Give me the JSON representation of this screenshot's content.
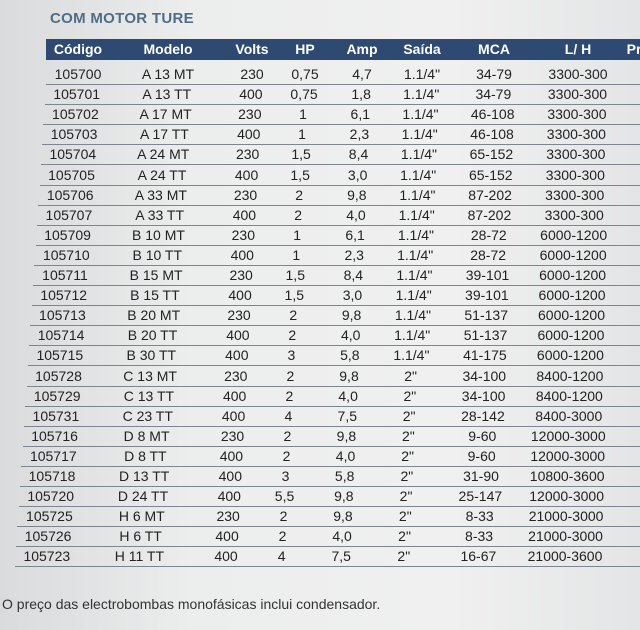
{
  "title": "COM MOTOR TURE",
  "table": {
    "headers": [
      "Código",
      "Modelo",
      "Volts",
      "HP",
      "Amp",
      "Saída",
      "MCA",
      "L/ H",
      "Pr"
    ],
    "rows": [
      [
        "105700",
        "A 13 MT",
        "230",
        "0,75",
        "4,7",
        "1.1/4\"",
        "34-79",
        "3300-300"
      ],
      [
        "105701",
        "A 13 TT",
        "400",
        "0,75",
        "1,8",
        "1.1/4\"",
        "34-79",
        "3300-300"
      ],
      [
        "105702",
        "A 17 MT",
        "230",
        "1",
        "6,1",
        "1.1/4\"",
        "46-108",
        "3300-300"
      ],
      [
        "105703",
        "A 17 TT",
        "400",
        "1",
        "2,3",
        "1.1/4\"",
        "46-108",
        "3300-300"
      ],
      [
        "105704",
        "A 24 MT",
        "230",
        "1,5",
        "8,4",
        "1.1/4\"",
        "65-152",
        "3300-300"
      ],
      [
        "105705",
        "A 24 TT",
        "400",
        "1,5",
        "3,0",
        "1.1/4\"",
        "65-152",
        "3300-300"
      ],
      [
        "105706",
        "A 33 MT",
        "230",
        "2",
        "9,8",
        "1.1/4\"",
        "87-202",
        "3300-300"
      ],
      [
        "105707",
        "A 33 TT",
        "400",
        "2",
        "4,0",
        "1.1/4\"",
        "87-202",
        "3300-300"
      ],
      [
        "105709",
        "B 10 MT",
        "230",
        "1",
        "6,1",
        "1.1/4\"",
        "28-72",
        "6000-1200"
      ],
      [
        "105710",
        "B 10 TT",
        "400",
        "1",
        "2,3",
        "1.1/4\"",
        "28-72",
        "6000-1200"
      ],
      [
        "105711",
        "B 15 MT",
        "230",
        "1,5",
        "8,4",
        "1.1/4\"",
        "39-101",
        "6000-1200"
      ],
      [
        "105712",
        "B 15 TT",
        "400",
        "1,5",
        "3,0",
        "1.1/4\"",
        "39-101",
        "6000-1200"
      ],
      [
        "105713",
        "B 20 MT",
        "230",
        "2",
        "9,8",
        "1.1/4\"",
        "51-137",
        "6000-1200"
      ],
      [
        "105714",
        "B 20 TT",
        "400",
        "2",
        "4,0",
        "1.1/4\"",
        "51-137",
        "6000-1200"
      ],
      [
        "105715",
        "B 30 TT",
        "400",
        "3",
        "5,8",
        "1.1/4\"",
        "41-175",
        "6000-1200"
      ],
      [
        "105728",
        "C 13 MT",
        "230",
        "2",
        "9,8",
        "2\"",
        "34-100",
        "8400-1200"
      ],
      [
        "105729",
        "C 13 TT",
        "400",
        "2",
        "4,0",
        "2\"",
        "34-100",
        "8400-1200"
      ],
      [
        "105731",
        "C 23 TT",
        "400",
        "4",
        "7,5",
        "2\"",
        "28-142",
        "8400-3000"
      ],
      [
        "105716",
        "D 8 MT",
        "230",
        "2",
        "9,8",
        "2\"",
        "9-60",
        "12000-3000"
      ],
      [
        "105717",
        "D 8 TT",
        "400",
        "2",
        "4,0",
        "2\"",
        "9-60",
        "12000-3000"
      ],
      [
        "105718",
        "D 13 TT",
        "400",
        "3",
        "5,8",
        "2\"",
        "31-90",
        "10800-3600"
      ],
      [
        "105720",
        "D 24 TT",
        "400",
        "5,5",
        "9,8",
        "2\"",
        "25-147",
        "12000-3000"
      ],
      [
        "105725",
        "H 6 MT",
        "230",
        "2",
        "9,8",
        "2\"",
        "8-33",
        "21000-3000"
      ],
      [
        "105726",
        "H 6 TT",
        "400",
        "2",
        "4,0",
        "2\"",
        "8-33",
        "21000-3000"
      ],
      [
        "105723",
        "H 11 TT",
        "400",
        "4",
        "7,5",
        "2\"",
        "16-67",
        "21000-3600"
      ]
    ]
  },
  "footer": "O preço das electrobombas monofásicas inclui condensador."
}
